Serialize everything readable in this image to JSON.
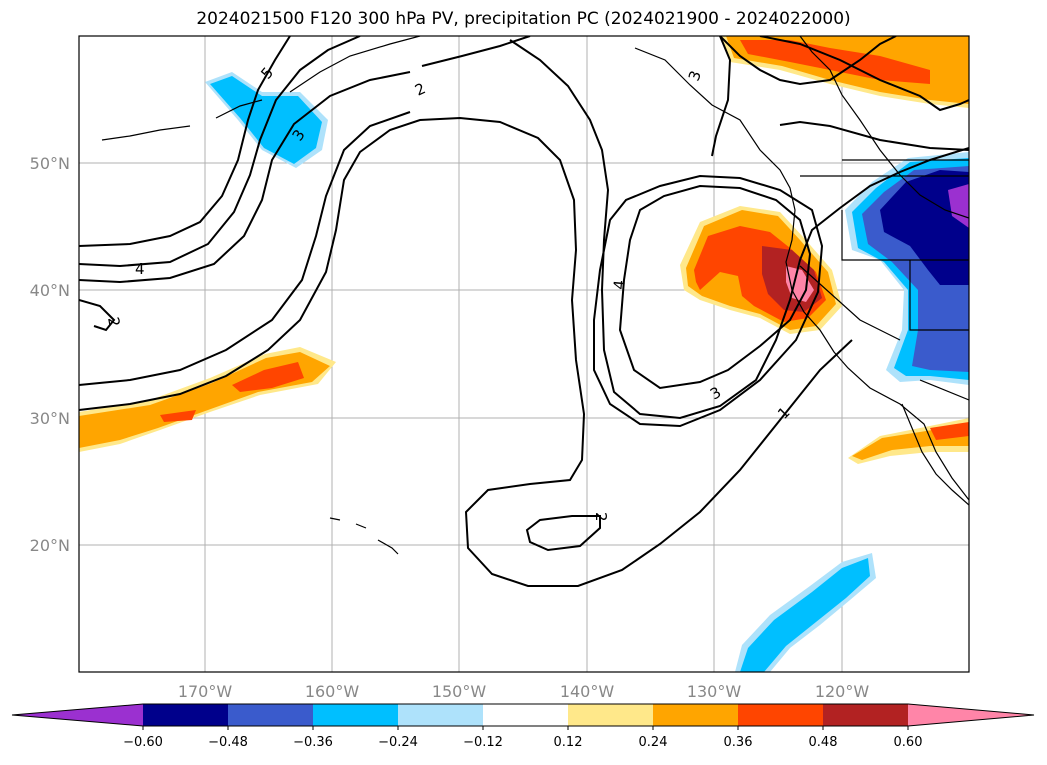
{
  "title": "2024021500 F120 300 hPa PV, precipitation PC (2024021900 - 2024022000)",
  "map": {
    "lat_ticks": [
      "50°N",
      "40°N",
      "30°N",
      "20°N"
    ],
    "lon_ticks": [
      "170°W",
      "160°W",
      "150°W",
      "140°W",
      "130°W",
      "120°W"
    ],
    "contour_labels": [
      "5",
      "2",
      "3",
      "4",
      "2",
      "4",
      "3",
      "1",
      "2",
      "3"
    ]
  },
  "colorbar": {
    "ticks": [
      "−0.60",
      "−0.48",
      "−0.36",
      "−0.24",
      "−0.12",
      "0.12",
      "0.24",
      "0.36",
      "0.48",
      "0.60"
    ],
    "colors": [
      "#9b30d0",
      "#00008b",
      "#3a5bcc",
      "#00bfff",
      "#aee2fb",
      "#ffffff",
      "#ffe88a",
      "#ffa500",
      "#ff4500",
      "#b22222",
      "#ff85a8"
    ]
  }
}
